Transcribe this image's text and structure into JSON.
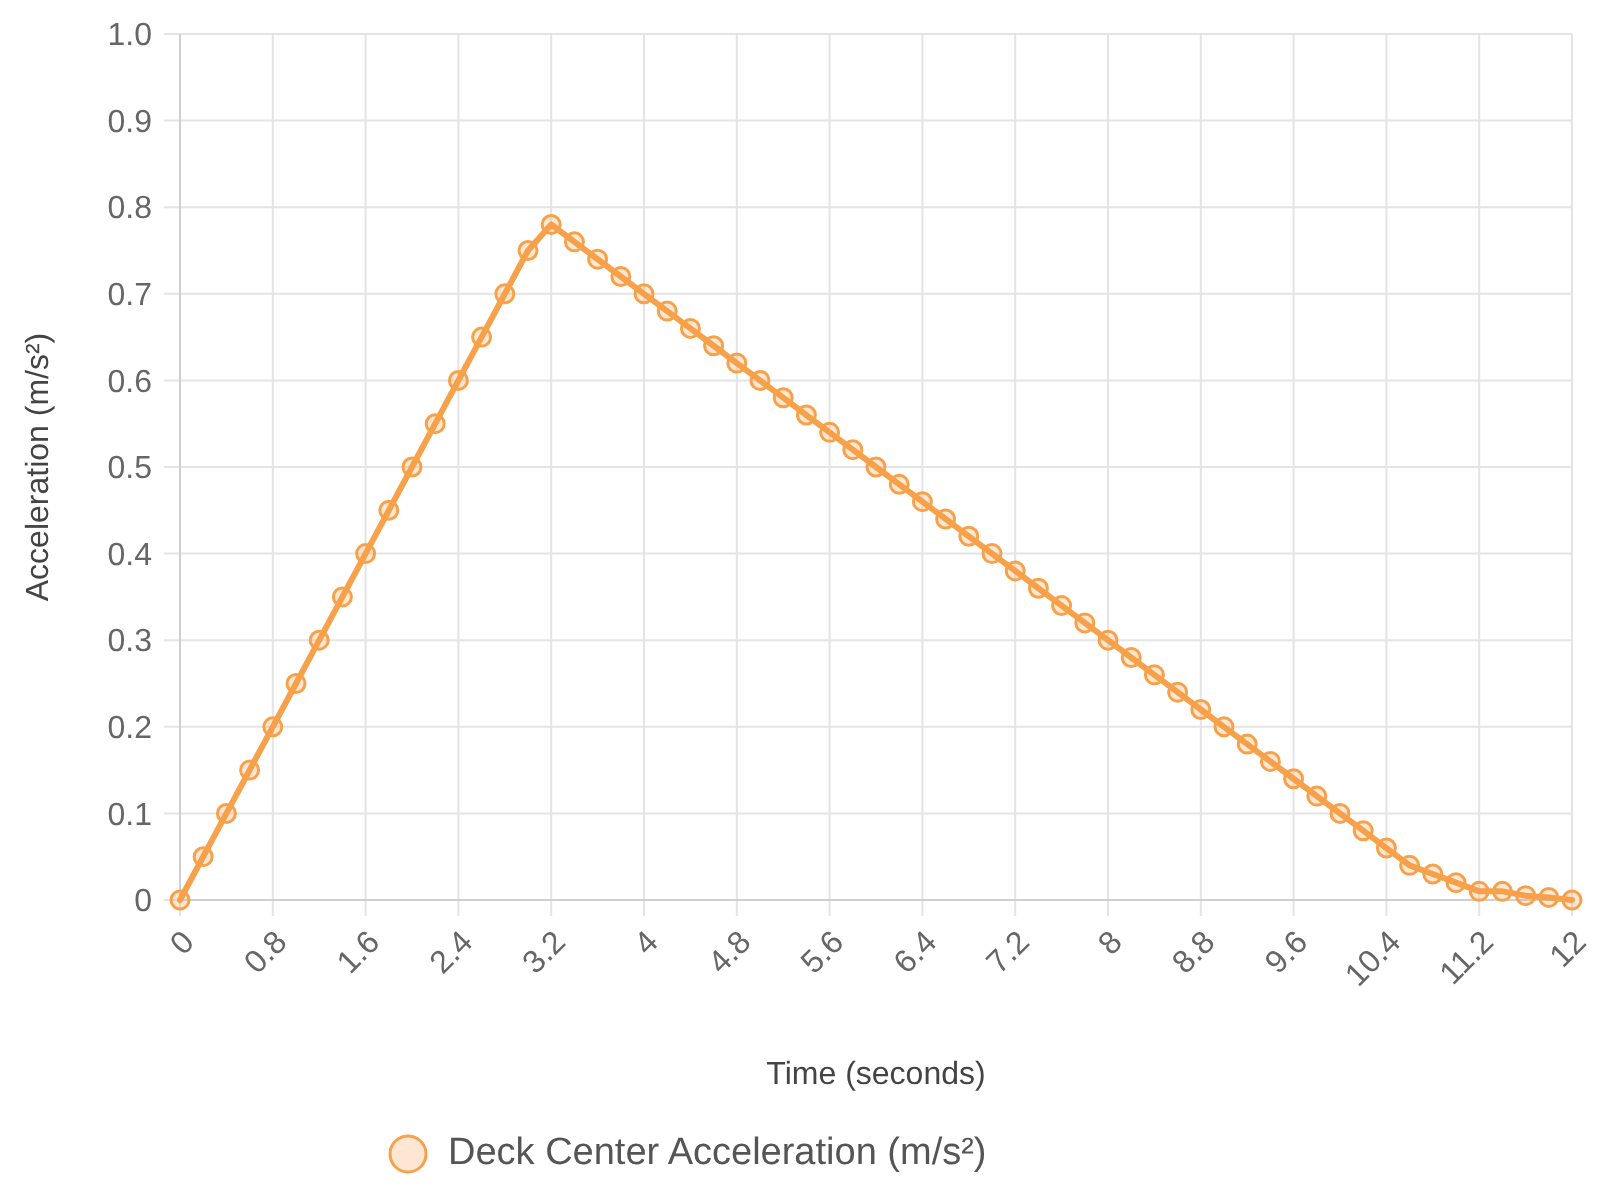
{
  "chart_data": {
    "type": "line",
    "xlabel": "Time (seconds)",
    "ylabel": "Acceleration (m/s²)",
    "x": [
      0,
      0.2,
      0.4,
      0.6,
      0.8,
      1,
      1.2,
      1.4,
      1.6,
      1.8,
      2,
      2.2,
      2.4,
      2.6,
      2.8,
      3,
      3.2,
      3.4,
      3.6,
      3.8,
      4,
      4.2,
      4.4,
      4.6,
      4.8,
      5,
      5.2,
      5.4,
      5.6,
      5.8,
      6,
      6.2,
      6.4,
      6.6,
      6.8,
      7,
      7.2,
      7.4,
      7.6,
      7.8,
      8,
      8.2,
      8.4,
      8.6,
      8.8,
      9,
      9.2,
      9.4,
      9.6,
      9.8,
      10,
      10.2,
      10.4,
      10.6,
      10.8,
      11,
      11.2,
      11.4,
      11.6,
      11.8,
      12
    ],
    "series": [
      {
        "name": "Deck Center Acceleration (m/s²)",
        "color": "#f7a14a",
        "values": [
          0,
          0.05,
          0.1,
          0.15,
          0.2,
          0.25,
          0.3,
          0.35,
          0.4,
          0.45,
          0.5,
          0.55,
          0.6,
          0.65,
          0.7,
          0.75,
          0.78,
          0.76,
          0.74,
          0.72,
          0.7,
          0.68,
          0.66,
          0.64,
          0.62,
          0.6,
          0.58,
          0.56,
          0.54,
          0.52,
          0.5,
          0.48,
          0.46,
          0.44,
          0.42,
          0.4,
          0.38,
          0.36,
          0.34,
          0.32,
          0.3,
          0.28,
          0.26,
          0.24,
          0.22,
          0.2,
          0.18,
          0.16,
          0.14,
          0.12,
          0.1,
          0.08,
          0.06,
          0.04,
          0.03,
          0.02,
          0.01,
          0.01,
          0.005,
          0.003,
          0
        ]
      }
    ],
    "xlim": [
      0,
      12
    ],
    "xticks": [
      0,
      0.8,
      1.6,
      2.4,
      3.2,
      4,
      4.8,
      5.6,
      6.4,
      7.2,
      8,
      8.8,
      9.6,
      10.4,
      11.2,
      12
    ],
    "ylim": [
      0,
      1
    ],
    "yticks": [
      0,
      0.1,
      0.2,
      0.3,
      0.4,
      0.5,
      0.6,
      0.7,
      0.8,
      0.9,
      {
        "value": 1,
        "label": "1.0"
      }
    ],
    "grid": true,
    "legend": "bottom",
    "marker": "circle",
    "line_style": "solid"
  }
}
